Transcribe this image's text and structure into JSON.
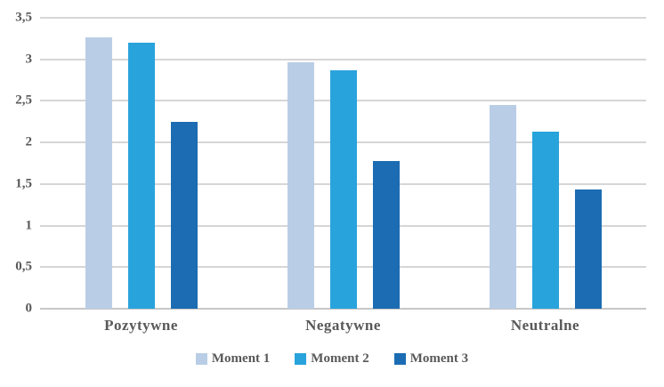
{
  "chart_data": {
    "type": "bar",
    "title": "",
    "xlabel": "",
    "ylabel": "",
    "categories": [
      "Pozytywne",
      "Negatywne",
      "Neutralne"
    ],
    "series": [
      {
        "name": "Moment 1",
        "color": "#b9cee6",
        "values": [
          3.27,
          2.96,
          2.45
        ]
      },
      {
        "name": "Moment 2",
        "color": "#29a3dc",
        "values": [
          3.2,
          2.87,
          2.13
        ]
      },
      {
        "name": "Moment 3",
        "color": "#1b6cb2",
        "values": [
          2.25,
          1.78,
          1.43
        ]
      }
    ],
    "ylim": [
      0,
      3.5
    ],
    "y_tick_step": 0.5,
    "y_ticks": [
      {
        "value": 3.5,
        "label": "3,5"
      },
      {
        "value": 3,
        "label": "3"
      },
      {
        "value": 2.5,
        "label": "2,5"
      },
      {
        "value": 2,
        "label": "2"
      },
      {
        "value": 1.5,
        "label": "1,5"
      },
      {
        "value": 1,
        "label": "1"
      },
      {
        "value": 0.5,
        "label": "0,5"
      },
      {
        "value": 0,
        "label": "0"
      }
    ],
    "decimal_separator": ",",
    "grid": true,
    "legend_position": "bottom"
  },
  "colors": {
    "text": "#595959",
    "gridline": "#d6d6d6",
    "axis_line": "#c7c7c7",
    "background": "#ffffff"
  }
}
